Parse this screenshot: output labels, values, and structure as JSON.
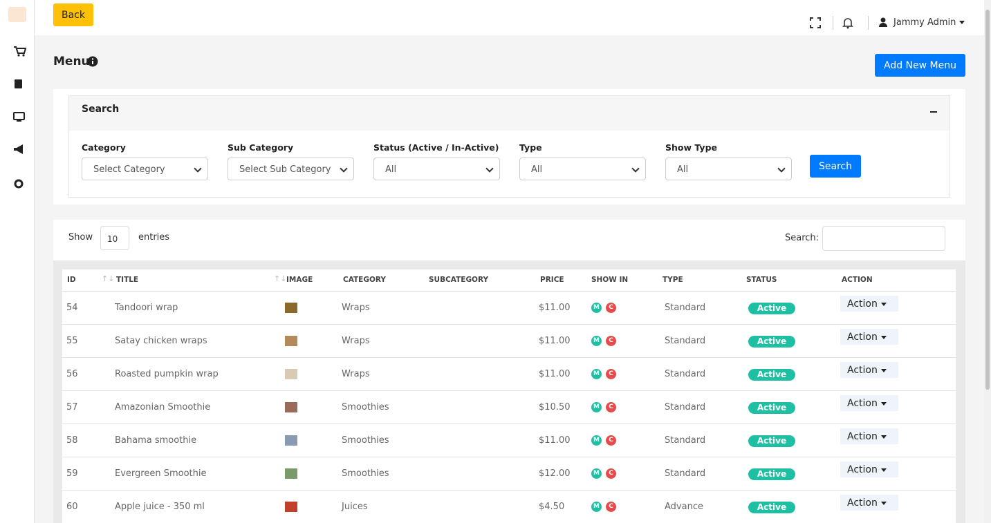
{
  "header": {
    "back": "Back",
    "user": "Jammy Admin"
  },
  "page": {
    "title": "Menu",
    "add_button": "Add New Menu"
  },
  "search_panel": {
    "title": "Search",
    "filters": [
      {
        "label": "Category",
        "value": "Select Category"
      },
      {
        "label": "Sub Category",
        "value": "Select Sub Category"
      },
      {
        "label": "Status (Active / In-Active)",
        "value": "All"
      },
      {
        "label": "Type",
        "value": "All"
      },
      {
        "label": "Show Type",
        "value": "All"
      }
    ],
    "button": "Search"
  },
  "table": {
    "show_label": "Show",
    "entries_value": "10",
    "entries_label": "entries",
    "search_label": "Search:",
    "columns": [
      "ID",
      "TITLE",
      "IMAGE",
      "CATEGORY",
      "SUBCATEGORY",
      "PRICE",
      "SHOW IN",
      "TYPE",
      "STATUS",
      "ACTION"
    ],
    "rows": [
      {
        "id": 54,
        "title": "Tandoori wrap",
        "category": "Wraps",
        "price": "$11.00",
        "show_in": [
          "M",
          "C"
        ],
        "type": "Standard",
        "status": "Active",
        "action": "Action"
      },
      {
        "id": 55,
        "title": "Satay chicken wraps",
        "category": "Wraps",
        "price": "$11.00",
        "show_in": [
          "M",
          "C"
        ],
        "type": "Standard",
        "status": "Active",
        "action": "Action"
      },
      {
        "id": 56,
        "title": "Roasted pumpkin wrap",
        "category": "Wraps",
        "price": "$11.00",
        "show_in": [
          "M",
          "C"
        ],
        "type": "Standard",
        "status": "Active",
        "action": "Action"
      },
      {
        "id": 57,
        "title": "Amazonian Smoothie",
        "category": "Smoothies",
        "price": "$10.50",
        "show_in": [
          "M",
          "C"
        ],
        "type": "Standard",
        "status": "Active",
        "action": "Action"
      },
      {
        "id": 58,
        "title": "Bahama smoothie",
        "category": "Smoothies",
        "price": "$11.00",
        "show_in": [
          "M",
          "C"
        ],
        "type": "Standard",
        "status": "Active",
        "action": "Action"
      },
      {
        "id": 59,
        "title": "Evergreen Smoothie",
        "category": "Smoothies",
        "price": "$12.00",
        "show_in": [
          "M",
          "C"
        ],
        "type": "Standard",
        "status": "Active",
        "action": "Action"
      },
      {
        "id": 60,
        "title": "Apple juice - 350 ml",
        "category": "Juices",
        "price": "$4.50",
        "show_in": [
          "M",
          "C"
        ],
        "type": "Advance",
        "status": "Active",
        "action": "Action"
      }
    ]
  }
}
